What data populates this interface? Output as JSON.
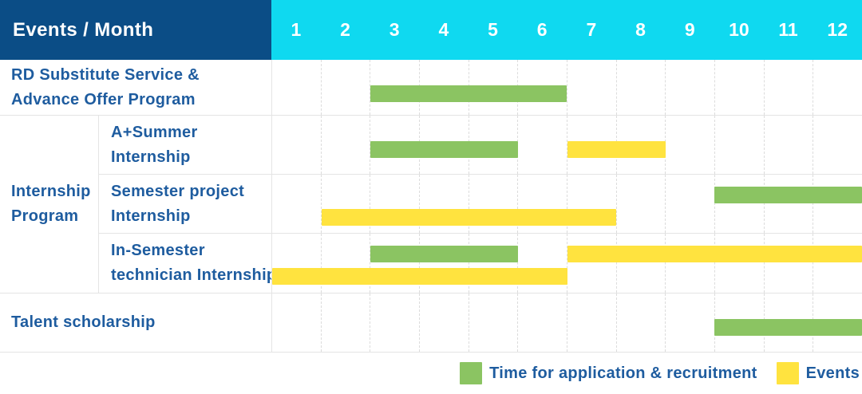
{
  "header": {
    "title": "Events / Month"
  },
  "colors": {
    "header_navy": "#0B4D86",
    "month_cyan": "#0FD9F0",
    "recruitment_green": "#8BC462",
    "event_yellow": "#FFE33F",
    "label_blue": "#1E5C9F",
    "grid_line": "#E4E4E4"
  },
  "chart_data": {
    "type": "table",
    "subtype": "gantt-schedule",
    "title": "Events / Month",
    "x_axis": {
      "label": "Month",
      "ticks": [
        "1",
        "2",
        "3",
        "4",
        "5",
        "6",
        "7",
        "8",
        "9",
        "10",
        "11",
        "12"
      ],
      "range": [
        1,
        12
      ]
    },
    "group_cell": {
      "label_lines": [
        "Internship",
        "Program"
      ],
      "spans_rows": [
        2,
        4
      ]
    },
    "rows": [
      {
        "event": "RD Substitute Service & Advance Offer Program",
        "label_lines": [
          "RD Substitute Service &",
          "Advance Offer Program"
        ],
        "group": null,
        "spans": [
          {
            "kind": "recruitment",
            "months": [
              3,
              6
            ],
            "track": "solo"
          }
        ]
      },
      {
        "event": "A+Summer Internship",
        "label_lines": [
          "A+Summer",
          "Internship"
        ],
        "group": "Internship Program",
        "spans": [
          {
            "kind": "recruitment",
            "months": [
              3,
              5
            ],
            "track": "solo"
          },
          {
            "kind": "events",
            "months": [
              7,
              8
            ],
            "track": "solo"
          }
        ]
      },
      {
        "event": "Semester project Internship",
        "label_lines": [
          "Semester project",
          "Internship"
        ],
        "group": "Internship Program",
        "spans": [
          {
            "kind": "recruitment",
            "months": [
              10,
              12
            ],
            "track": "upper"
          },
          {
            "kind": "events",
            "months": [
              2,
              7
            ],
            "track": "lower"
          }
        ]
      },
      {
        "event": "In-Semester technician Internship",
        "label_lines": [
          "In-Semester",
          "technician Internship"
        ],
        "group": "Internship Program",
        "spans": [
          {
            "kind": "recruitment",
            "months": [
              3,
              5
            ],
            "track": "upper"
          },
          {
            "kind": "events",
            "months": [
              7,
              12
            ],
            "track": "upper"
          },
          {
            "kind": "events",
            "months": [
              1,
              6
            ],
            "track": "lower"
          }
        ]
      },
      {
        "event": "Talent scholarship",
        "label_lines": [
          "Talent scholarship"
        ],
        "group": null,
        "spans": [
          {
            "kind": "recruitment",
            "months": [
              10,
              12
            ],
            "track": "solo"
          }
        ]
      }
    ],
    "legend_position": "bottom-right"
  },
  "legend": {
    "items": [
      {
        "label": "Time for application & recruitment",
        "kind": "recruitment",
        "color": "#8BC462"
      },
      {
        "label": "Events",
        "kind": "events",
        "color": "#FFE33F"
      }
    ]
  }
}
